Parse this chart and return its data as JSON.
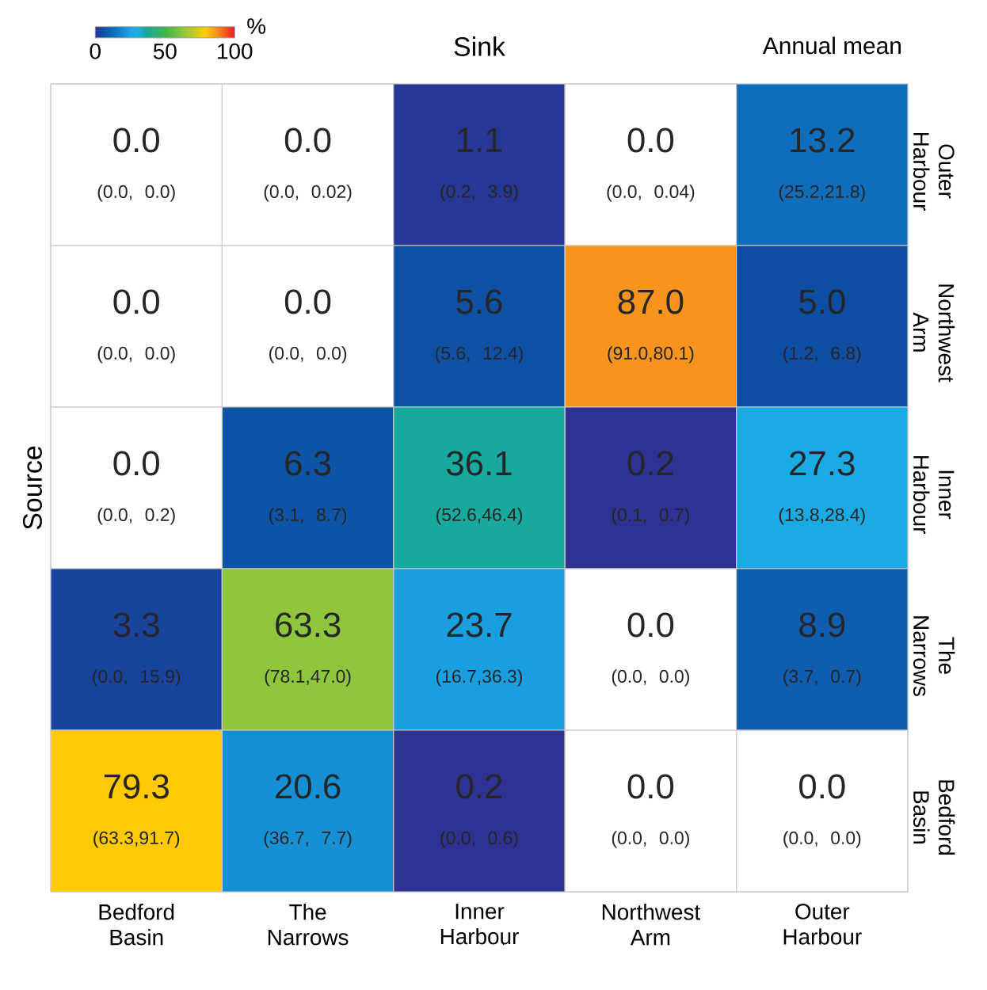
{
  "chart_data": {
    "type": "heatmap",
    "xlabel": "Sink",
    "ylabel": "Source",
    "annotations": [
      "Annual mean"
    ],
    "categories": [
      "Bedford Basin",
      "The Narrows",
      "Inner Harbour",
      "Northwest Arm",
      "Outer Harbour"
    ],
    "y_categories": [
      "Outer Harbour",
      "Northwest Arm",
      "Inner Harbour",
      "The Narrows",
      "Bedford Basin"
    ],
    "cells": [
      [
        null,
        null,
        1.1,
        null,
        13.2
      ],
      [
        null,
        null,
        5.6,
        87.0,
        5.0
      ],
      [
        null,
        6.3,
        36.1,
        0.2,
        27.3
      ],
      [
        3.3,
        63.3,
        23.7,
        null,
        8.9
      ],
      [
        79.3,
        20.6,
        0.2,
        null,
        null
      ]
    ],
    "cell_labels": [
      [
        "0.0\n(0.0,  0.0)",
        "0.0\n(0.0, 0.02)",
        "1.1\n(0.2,  3.9)",
        "0.0\n(0.0, 0.04)",
        "13.2\n(25.2,21.8)"
      ],
      [
        "0.0\n(0.0,  0.0)",
        "0.0\n(0.0,  0.0)",
        "5.6\n(5.6, 12.4)",
        "87.0\n(91.0,80.1)",
        "5.0\n(1.2,  6.8)"
      ],
      [
        "0.0\n(0.0,  0.2)",
        "6.3\n(3.1,  8.7)",
        "36.1\n(52.6,46.4)",
        "0.2\n(0.1,  0.7)",
        "27.3\n(13.8,28.4)"
      ],
      [
        "3.3\n(0.0, 15.9)",
        "63.3\n(78.1,47.0)",
        "23.7\n(16.7,36.3)",
        "0.0\n(0.0,  0.0)",
        "8.9\n(3.7,  0.7)"
      ],
      [
        "79.3\n(63.3,91.7)",
        "20.6\n(36.7,  7.7)",
        "0.2\n(0.0,  0.6)",
        "0.0\n(0.0,  0.0)",
        "0.0\n(0.0,  0.0)"
      ]
    ],
    "clim": [
      0,
      100
    ],
    "cticks": [
      0,
      50,
      100
    ],
    "clabel": "%"
  }
}
